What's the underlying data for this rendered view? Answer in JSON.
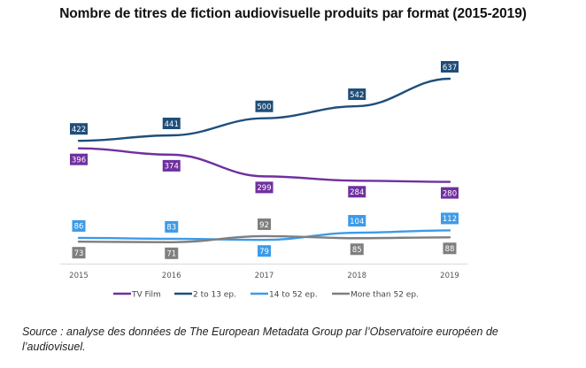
{
  "chart_data": {
    "type": "line",
    "title": "Nombre de titres de fiction audiovisuelle produits par format (2015-2019)",
    "xlabel": "",
    "ylabel": "",
    "x": [
      "2015",
      "2016",
      "2017",
      "2018",
      "2019"
    ],
    "ylim": [
      0,
      650
    ],
    "grid": false,
    "legend": "bottom",
    "series": [
      {
        "name": "TV Film",
        "color": "#7030a0",
        "values": [
          396,
          374,
          299,
          284,
          280
        ],
        "label_pos": "below"
      },
      {
        "name": "2 to 13 ep.",
        "color": "#1f4e79",
        "values": [
          422,
          441,
          500,
          542,
          637
        ],
        "label_pos": "above"
      },
      {
        "name": "14 to 52 ep.",
        "color": "#3c9be8",
        "values": [
          86,
          83,
          79,
          104,
          112
        ],
        "label_pos": [
          "above",
          "above",
          "below",
          "above",
          "above"
        ]
      },
      {
        "name": "More than 52 ep.",
        "color": "#7f7f7f",
        "values": [
          73,
          71,
          92,
          85,
          88
        ],
        "label_pos": [
          "below",
          "below",
          "above",
          "below",
          "below"
        ]
      }
    ]
  },
  "source": "Source : analyse des données de The European Metadata Group par l’Observatoire européen de l’audiovisuel."
}
